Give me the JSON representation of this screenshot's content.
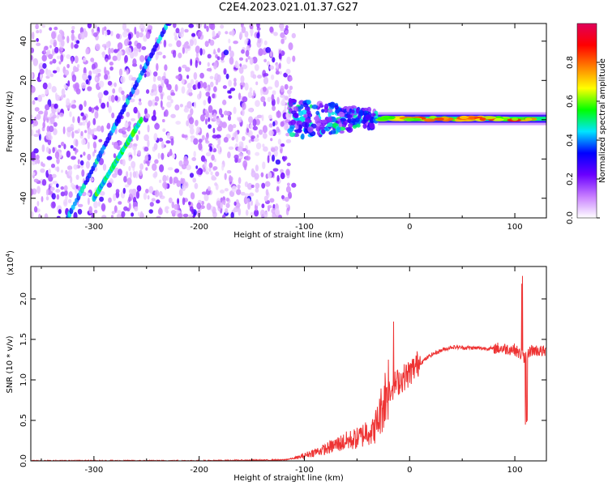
{
  "title": "C2E4.2023.021.01.37.G27",
  "colors": {
    "snr_line": "#ee3333",
    "axis": "#000000",
    "track_dim": "#6a2cff",
    "track_bright": "#2ee0ff"
  },
  "chart_data": [
    {
      "type": "heatmap",
      "xlabel": "Height of straight line (km)",
      "ylabel": "Frequency (Hz)",
      "xlim": [
        -360,
        130
      ],
      "ylim": [
        -50,
        49
      ],
      "x_ticks": [
        "-300",
        "-200",
        "-100",
        "0",
        "100"
      ],
      "y_ticks": [
        "-40",
        "-20",
        "0",
        "20",
        "40"
      ],
      "colorbar": {
        "label": "Normalized spectral amplitude",
        "range": [
          0.0,
          1.0
        ],
        "ticks": [
          "0.0",
          "0.2",
          "0.4",
          "0.6",
          "0.8"
        ],
        "colormap": [
          "#ffffff",
          "#c77dff",
          "#6a00ff",
          "#0000ff",
          "#00e5ff",
          "#00ff00",
          "#ffff00",
          "#ff7f00",
          "#ff0000",
          "#e0005a"
        ]
      },
      "features": [
        {
          "region": "noise",
          "x": [
            -360,
            -110
          ],
          "y": [
            -50,
            49
          ],
          "level": 0.2
        },
        {
          "region": "diagonal_track",
          "x": [
            -325,
            -230
          ],
          "y": [
            -50,
            49
          ],
          "level": 0.35
        },
        {
          "region": "diagonal_track",
          "x": [
            -300,
            -255
          ],
          "y": [
            -40,
            0
          ],
          "level": 0.45
        },
        {
          "region": "transition",
          "x": [
            -115,
            -30
          ],
          "y": [
            -8,
            13
          ],
          "level": 0.4
        },
        {
          "region": "carrier",
          "x": [
            -30,
            130
          ],
          "y": [
            -2,
            3
          ],
          "level": 0.85
        }
      ]
    },
    {
      "type": "line",
      "xlabel": "Height of straight line (km)",
      "ylabel": "SNR (10 * v/v)",
      "scale_label": "(x10",
      "scale_exponent": "4",
      "scale_suffix": ")",
      "xlim": [
        -360,
        130
      ],
      "ylim": [
        0,
        2.4
      ],
      "x_ticks": [
        "-300",
        "-200",
        "-100",
        "0",
        "100"
      ],
      "y_ticks": [
        "0.0",
        "0.5",
        "1.0",
        "1.5",
        "2.0"
      ],
      "series": [
        {
          "x": [
            -360,
            -300,
            -200,
            -120,
            -105,
            -95,
            -80,
            -70,
            -60,
            -50,
            -45,
            -40,
            -35,
            -30,
            -25,
            -20,
            -15,
            -10,
            -5,
            0,
            10,
            20,
            30,
            40,
            60,
            80,
            90,
            100,
            105,
            110,
            115,
            120,
            125,
            130
          ],
          "y": [
            0.0,
            0.0,
            0.0,
            0.01,
            0.04,
            0.08,
            0.13,
            0.18,
            0.22,
            0.25,
            0.28,
            0.35,
            0.32,
            0.45,
            0.65,
            0.85,
            0.9,
            0.95,
            1.0,
            1.05,
            1.2,
            1.3,
            1.36,
            1.4,
            1.39,
            1.38,
            1.37,
            1.36,
            1.3,
            1.25,
            1.35,
            1.35,
            1.34,
            1.33
          ]
        }
      ]
    }
  ]
}
